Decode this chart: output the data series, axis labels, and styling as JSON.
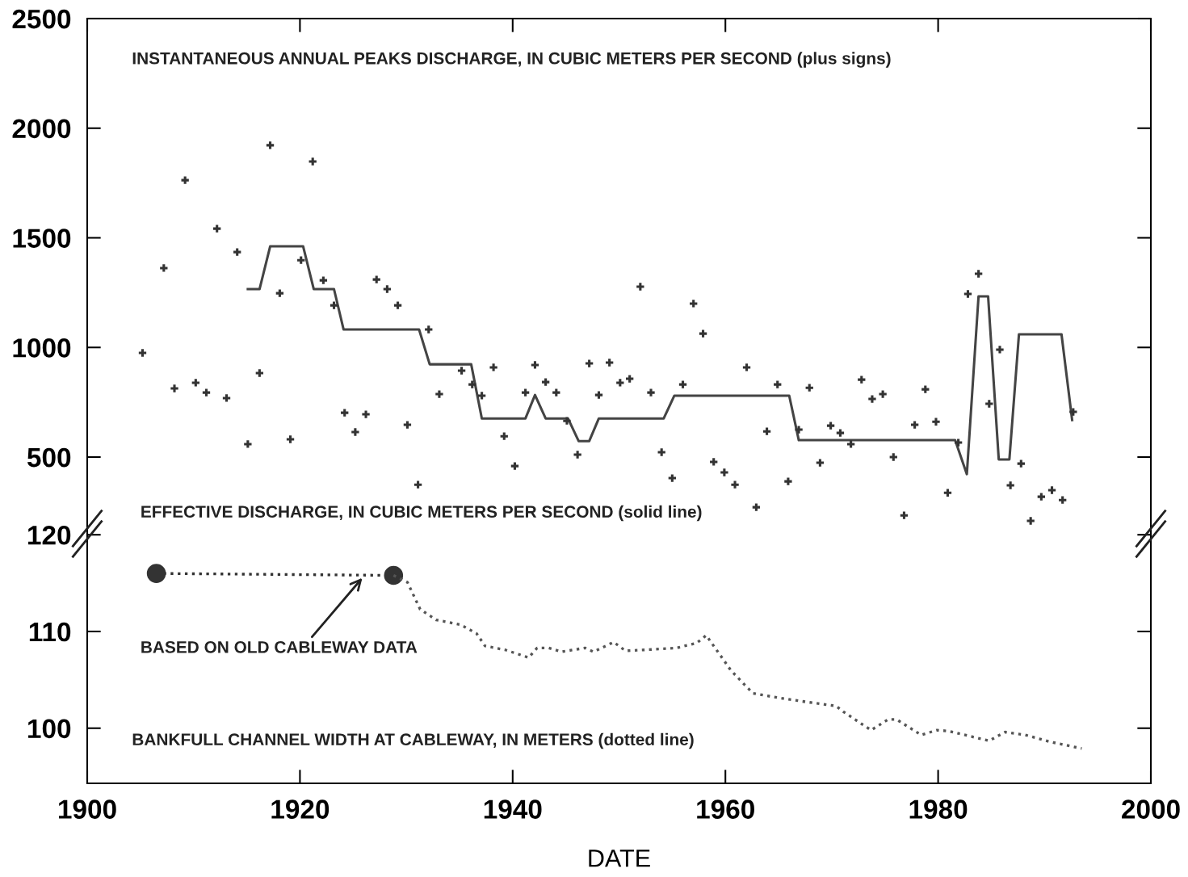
{
  "chart_data": [
    {
      "type": "scatter",
      "xlim": [
        1900,
        2000
      ],
      "xticks": [
        1900,
        1920,
        1940,
        1960,
        1980,
        2000
      ],
      "ylim": [
        150,
        2500
      ],
      "yticks": [
        500,
        1000,
        1500,
        2000,
        2500
      ],
      "tick_labels": "y",
      "grid": false,
      "legend": false,
      "annotations": [
        "INSTANTANEOUS ANNUAL PEAKS DISCHARGE, IN CUBIC METERS PER SECOND (plus signs)",
        "EFFECTIVE DISCHARGE, IN CUBIC METERS PER SECOND (solid line)"
      ],
      "series": [
        {
          "marker": "cross",
          "color": "#333333",
          "x": [
            1905.2,
            1907.2,
            1908.2,
            1909.2,
            1910.2,
            1911.2,
            1912.2,
            1913.1,
            1914.1,
            1915.1,
            1916.2,
            1917.2,
            1918.1,
            1919.1,
            1920.1,
            1921.2,
            1922.2,
            1923.2,
            1924.2,
            1925.2,
            1926.2,
            1927.2,
            1928.2,
            1929.2,
            1930.1,
            1931.1,
            1932.1,
            1933.1,
            1935.2,
            1936.2,
            1937.1,
            1938.2,
            1939.2,
            1940.2,
            1941.2,
            1942.1,
            1943.1,
            1944.1,
            1945.1,
            1946.1,
            1947.2,
            1948.1,
            1949.1,
            1950.1,
            1951.0,
            1952.0,
            1953.0,
            1954.0,
            1955.0,
            1956.0,
            1957.0,
            1957.9,
            1958.9,
            1959.9,
            1960.9,
            1962.0,
            1962.9,
            1963.9,
            1964.9,
            1965.9,
            1966.9,
            1967.9,
            1968.9,
            1969.9,
            1970.8,
            1971.8,
            1972.8,
            1973.8,
            1974.8,
            1975.8,
            1976.8,
            1977.8,
            1978.8,
            1979.8,
            1980.9,
            1981.9,
            1982.8,
            1983.8,
            1984.8,
            1985.8,
            1986.8,
            1987.8,
            1988.7,
            1989.7,
            1990.7,
            1991.7,
            1992.7
          ],
          "values": [
            975,
            1362,
            813,
            1763,
            839,
            794,
            1542,
            769,
            1435,
            559,
            883,
            1922,
            1247,
            581,
            1398,
            1848,
            1306,
            1192,
            702,
            614,
            695,
            1310,
            1266,
            1192,
            647,
            374,
            1082,
            787,
            894,
            831,
            780,
            909,
            595,
            459,
            794,
            920,
            842,
            794,
            665,
            511,
            927,
            783,
            931,
            839,
            857,
            1277,
            794,
            522,
            404,
            831,
            1200,
            1063,
            478,
            430,
            374,
            909,
            271,
            617,
            831,
            389,
            625,
            816,
            474,
            643,
            610,
            559,
            853,
            765,
            787,
            500,
            234,
            647,
            809,
            661,
            337,
            566,
            1244,
            1336,
            743,
            990,
            371,
            470,
            209,
            319,
            349,
            304,
            706
          ]
        },
        {
          "type": "line",
          "line_style": "solid",
          "marker": "none",
          "color": "#444444",
          "x": [
            1915.1,
            1916.2,
            1917.2,
            1920.3,
            1921.3,
            1923.2,
            1924.1,
            1931.2,
            1932.2,
            1936.1,
            1937.1,
            1941.2,
            1942.1,
            1943.1,
            1945.2,
            1946.2,
            1947.2,
            1948.1,
            1954.2,
            1955.2,
            1966.0,
            1966.9,
            1981.6,
            1982.7,
            1983.8,
            1984.7,
            1985.7,
            1986.7,
            1987.6,
            1991.6,
            1992.6
          ],
          "values": [
            1266,
            1266,
            1461,
            1461,
            1266,
            1266,
            1082,
            1082,
            923,
            923,
            676,
            676,
            783,
            676,
            676,
            573,
            573,
            676,
            676,
            780,
            780,
            577,
            577,
            422,
            1233,
            1233,
            489,
            489,
            1060,
            1060,
            669
          ]
        }
      ]
    },
    {
      "type": "line",
      "xlim": [
        1900,
        2000
      ],
      "xticks": [
        1900,
        1920,
        1940,
        1960,
        1980,
        2000
      ],
      "ylim": [
        94.3,
        120.1
      ],
      "yticks": [
        100,
        110,
        120
      ],
      "xlabel": "DATE",
      "grid": false,
      "legend": false,
      "annotations": [
        "BANKFULL CHANNEL WIDTH AT CABLEWAY, IN METERS (dotted line)",
        "BASED ON OLD CABLEWAY DATA"
      ],
      "series": [
        {
          "line_style": "dotted",
          "marker": "circle",
          "color": "#333333",
          "x": [
            1906.5,
            1928.8
          ],
          "values": [
            116.0,
            115.8
          ]
        },
        {
          "line_style": "dotted",
          "marker": "none",
          "color": "#555555",
          "x": [
            1928.8,
            1930.1,
            1930.7,
            1931.3,
            1932.8,
            1935.1,
            1936.6,
            1937.4,
            1939.3,
            1941.5,
            1942.3,
            1943.4,
            1944.6,
            1946.8,
            1947.6,
            1949.5,
            1950.6,
            1952.5,
            1955.4,
            1957.3,
            1958.2,
            1959.8,
            1960.5,
            1961.8,
            1962.6,
            1964.7,
            1967.7,
            1970.4,
            1971.1,
            1973.0,
            1973.7,
            1975.3,
            1976.1,
            1978.4,
            1979.9,
            1981.0,
            1984.8,
            1986.3,
            1988.2,
            1990.5,
            1993.5
          ],
          "values": [
            115.8,
            115.1,
            113.7,
            112.3,
            111.2,
            110.7,
            109.8,
            108.5,
            108.1,
            107.3,
            108.3,
            108.3,
            107.9,
            108.3,
            107.9,
            108.9,
            108.0,
            108.1,
            108.3,
            108.8,
            109.6,
            107.1,
            106.0,
            104.5,
            103.6,
            103.2,
            102.7,
            102.3,
            101.7,
            100.3,
            99.8,
            100.9,
            100.9,
            99.3,
            99.8,
            99.7,
            98.7,
            99.6,
            99.3,
            98.6,
            97.9
          ]
        }
      ]
    }
  ]
}
